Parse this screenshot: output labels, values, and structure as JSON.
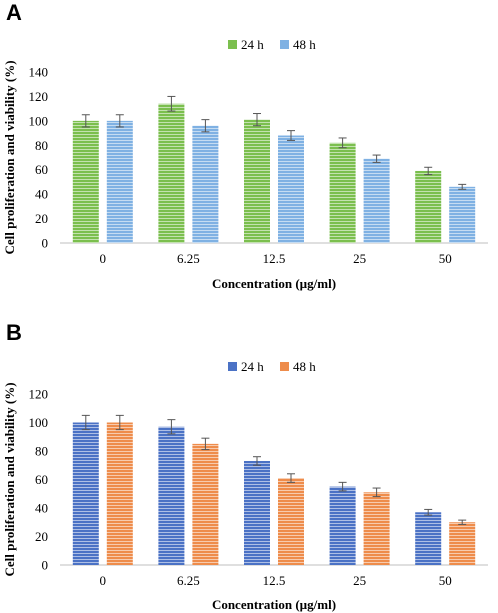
{
  "chart_data": [
    {
      "panel": "A",
      "type": "bar",
      "categories": [
        "0",
        "6.25",
        "12.5",
        "25",
        "50"
      ],
      "series": [
        {
          "name": "24 h",
          "color": "#7bbf4e",
          "values": [
            100,
            114,
            101,
            82,
            59
          ],
          "errors": [
            5,
            6,
            5,
            4,
            3
          ]
        },
        {
          "name": "48 h",
          "color": "#7fb1e3",
          "values": [
            100,
            96,
            88,
            69,
            46
          ],
          "errors": [
            5,
            5,
            4,
            3,
            2
          ]
        }
      ],
      "xlabel": "Concentration (µg/ml)",
      "ylabel": "Cell proliferation and viability (%)",
      "ylim": [
        0,
        140
      ],
      "yticks": [
        0,
        20,
        40,
        60,
        80,
        100,
        120,
        140
      ],
      "legend_position": "top-center",
      "grid": false
    },
    {
      "panel": "B",
      "type": "bar",
      "categories": [
        "0",
        "6.25",
        "12.5",
        "25",
        "50"
      ],
      "series": [
        {
          "name": "24 h",
          "color": "#4b72c5",
          "values": [
            100,
            97,
            73,
            55,
            37
          ],
          "errors": [
            5,
            5,
            3,
            3,
            2
          ]
        },
        {
          "name": "48 h",
          "color": "#ee8c4b",
          "values": [
            100,
            85,
            61,
            51,
            30
          ],
          "errors": [
            5,
            4,
            3,
            3,
            1.5
          ]
        }
      ],
      "xlabel": "Concentration (µg/ml)",
      "ylabel": "Cell proliferation and viability (%)",
      "ylim": [
        0,
        120
      ],
      "yticks": [
        0,
        20,
        40,
        60,
        80,
        100,
        120
      ],
      "legend_position": "top-center",
      "grid": false
    }
  ]
}
